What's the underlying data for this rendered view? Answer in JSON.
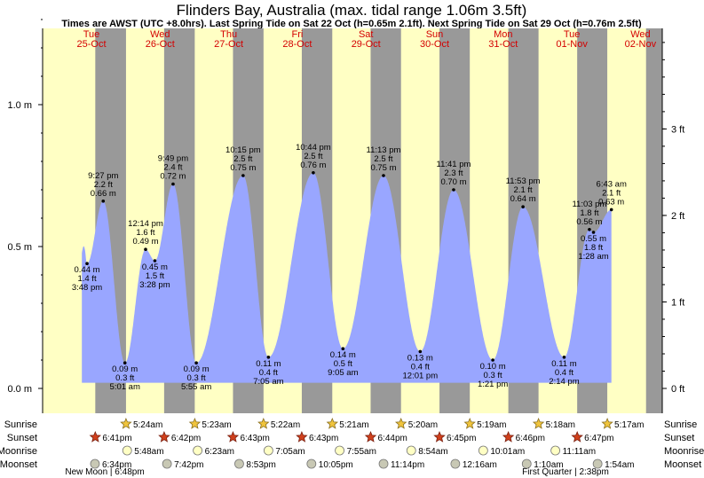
{
  "title": "Flinders Bay, Australia (max. tidal range 1.06m 3.5ft)",
  "subtitle": "Times are AWST (UTC +8.0hrs). Last Spring Tide on Sat 22 Oct (h=0.65m 2.1ft). Next Spring Tide on Sat 29 Oct (h=0.76m 2.5ft)",
  "colors": {
    "day": "#ffffc4",
    "night": "#999999",
    "tide": "#99a6ff",
    "date": "#d40000"
  },
  "chart_data": {
    "type": "area",
    "title": "Flinders Bay, Australia (max. tidal range 1.06m 3.5ft)",
    "left_axis": {
      "unit": "m",
      "ticks": [
        "0.0 m",
        "0.5 m",
        "1.0 m"
      ],
      "values": [
        0,
        0.5,
        1.0
      ]
    },
    "right_axis": {
      "unit": "ft",
      "ticks": [
        "0 ft",
        "1 ft",
        "2 ft",
        "3 ft"
      ],
      "values": [
        0,
        1,
        2,
        3
      ]
    },
    "ylim_m": [
      -0.09,
      1.34
    ],
    "days": [
      {
        "dow": "Tue",
        "date": "25-Oct"
      },
      {
        "dow": "Wed",
        "date": "26-Oct"
      },
      {
        "dow": "Thu",
        "date": "27-Oct"
      },
      {
        "dow": "Fri",
        "date": "28-Oct"
      },
      {
        "dow": "Sat",
        "date": "29-Oct"
      },
      {
        "dow": "Sun",
        "date": "30-Oct"
      },
      {
        "dow": "Mon",
        "date": "31-Oct"
      },
      {
        "dow": "Tue",
        "date": "01-Nov"
      },
      {
        "dow": "Wed",
        "date": "02-Nov"
      }
    ],
    "extremes": [
      {
        "type": "low",
        "t": 15.8,
        "time": "3:48 pm",
        "m": "0.44 m",
        "ft": "1.4 ft",
        "h": 0.44
      },
      {
        "type": "high",
        "t": 21.45,
        "time": "9:27 pm",
        "m": "0.66 m",
        "ft": "2.2 ft",
        "h": 0.66
      },
      {
        "type": "low",
        "t": 29.02,
        "time": "5:01 am",
        "m": "0.09 m",
        "ft": "0.3 ft",
        "h": 0.09
      },
      {
        "type": "high",
        "t": 36.23,
        "time": "12:14 pm",
        "m": "0.49 m",
        "ft": "1.6 ft",
        "h": 0.49
      },
      {
        "type": "low",
        "t": 39.47,
        "time": "3:28 pm",
        "m": "0.45 m",
        "ft": "1.5 ft",
        "h": 0.45
      },
      {
        "type": "high",
        "t": 45.82,
        "time": "9:49 pm",
        "m": "0.72 m",
        "ft": "2.4 ft",
        "h": 0.72
      },
      {
        "type": "low",
        "t": 53.92,
        "time": "5:55 am",
        "m": "0.09 m",
        "ft": "0.3 ft",
        "h": 0.09
      },
      {
        "type": "high",
        "t": 70.25,
        "time": "10:15 pm",
        "m": "0.75 m",
        "ft": "2.5 ft",
        "h": 0.75
      },
      {
        "type": "low",
        "t": 79.08,
        "time": "7:05 am",
        "m": "0.11 m",
        "ft": "0.4 ft",
        "h": 0.11
      },
      {
        "type": "high",
        "t": 94.73,
        "time": "10:44 pm",
        "m": "0.76 m",
        "ft": "2.5 ft",
        "h": 0.76
      },
      {
        "type": "low",
        "t": 105.08,
        "time": "9:05 am",
        "m": "0.14 m",
        "ft": "0.5 ft",
        "h": 0.14
      },
      {
        "type": "high",
        "t": 119.22,
        "time": "11:13 pm",
        "m": "0.75 m",
        "ft": "2.5 ft",
        "h": 0.75
      },
      {
        "type": "low",
        "t": 132.02,
        "time": "12:01 pm",
        "m": "0.13 m",
        "ft": "0.4 ft",
        "h": 0.13
      },
      {
        "type": "high",
        "t": 143.68,
        "time": "11:41 pm",
        "m": "0.70 m",
        "ft": "2.3 ft",
        "h": 0.7
      },
      {
        "type": "low",
        "t": 157.35,
        "time": "1:21 pm",
        "m": "0.10 m",
        "ft": "0.3 ft",
        "h": 0.1
      },
      {
        "type": "high",
        "t": 167.88,
        "time": "11:53 pm",
        "m": "0.64 m",
        "ft": "2.1 ft",
        "h": 0.64
      },
      {
        "type": "low",
        "t": 182.23,
        "time": "2:14 pm",
        "m": "0.11 m",
        "ft": "0.4 ft",
        "h": 0.11
      },
      {
        "type": "high",
        "t": 191.05,
        "time": "11:03 pm",
        "m": "0.56 m",
        "ft": "1.8 ft",
        "h": 0.56
      },
      {
        "type": "low",
        "t": 192.47,
        "time": "1:28 am",
        "m": "0.55 m",
        "ft": "1.8 ft",
        "h": 0.55
      },
      {
        "type": "high",
        "t": 198.72,
        "time": "6:43 am",
        "m": "0.63 m",
        "ft": "2.1 ft",
        "h": 0.63
      }
    ],
    "sunrise": [
      "5:24am",
      "5:23am",
      "5:22am",
      "5:21am",
      "5:20am",
      "5:19am",
      "5:18am",
      "5:17am"
    ],
    "sunset": [
      "6:41pm",
      "6:42pm",
      "6:43pm",
      "6:43pm",
      "6:44pm",
      "6:45pm",
      "6:46pm",
      "6:47pm"
    ],
    "moonrise": [
      "5:48am",
      "6:23am",
      "7:05am",
      "7:55am",
      "8:54am",
      "10:01am",
      "11:11am"
    ],
    "moonset": [
      "6:34pm",
      "7:42pm",
      "8:53pm",
      "10:05pm",
      "11:14pm",
      "12:16am",
      "1:10am",
      "1:54am"
    ],
    "moon_phases": [
      {
        "label": "New Moon | 6:48pm"
      },
      {
        "label": "First Quarter | 2:38pm"
      }
    ]
  },
  "rows": {
    "sunrise": "Sunrise",
    "sunset": "Sunset",
    "moonrise": "Moonrise",
    "moonset": "Moonset"
  }
}
